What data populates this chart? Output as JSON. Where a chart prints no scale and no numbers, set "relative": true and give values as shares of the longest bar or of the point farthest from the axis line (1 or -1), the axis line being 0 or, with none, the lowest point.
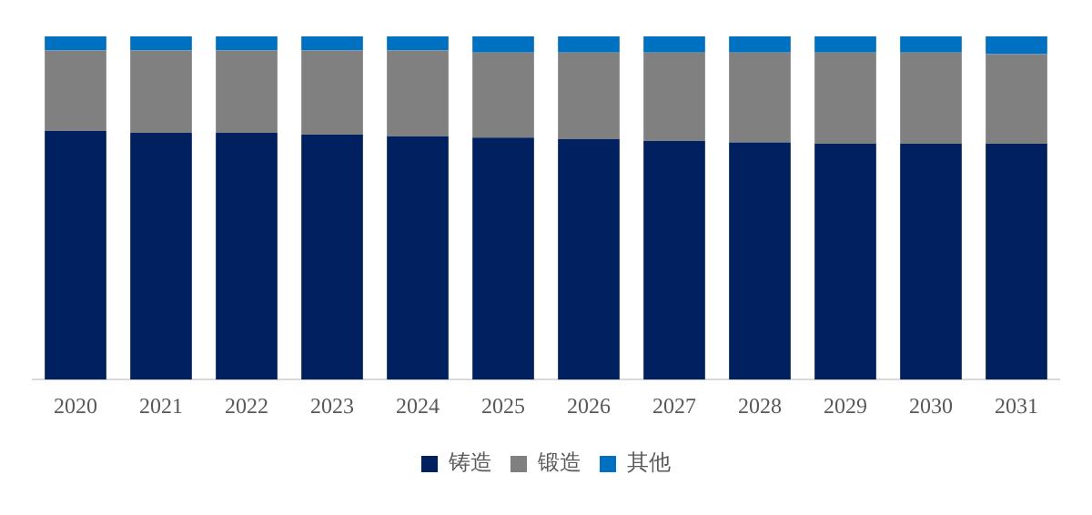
{
  "chart_data": {
    "type": "bar",
    "stacked": true,
    "relative": true,
    "legend": "bottom",
    "grid": false,
    "categories": [
      "2020",
      "2021",
      "2022",
      "2023",
      "2024",
      "2025",
      "2026",
      "2027",
      "2028",
      "2029",
      "2030",
      "2031"
    ],
    "series": [
      {
        "name": "铸造",
        "color": "#002060",
        "values": [
          0.725,
          0.719,
          0.719,
          0.714,
          0.709,
          0.705,
          0.701,
          0.695,
          0.691,
          0.687,
          0.687,
          0.687
        ]
      },
      {
        "name": "锻造",
        "color": "#808080",
        "values": [
          0.234,
          0.24,
          0.24,
          0.245,
          0.25,
          0.248,
          0.252,
          0.258,
          0.262,
          0.266,
          0.266,
          0.261
        ]
      },
      {
        "name": "其他",
        "color": "#0070c0",
        "values": [
          0.041,
          0.041,
          0.041,
          0.041,
          0.041,
          0.047,
          0.047,
          0.047,
          0.047,
          0.047,
          0.047,
          0.052
        ]
      }
    ]
  }
}
